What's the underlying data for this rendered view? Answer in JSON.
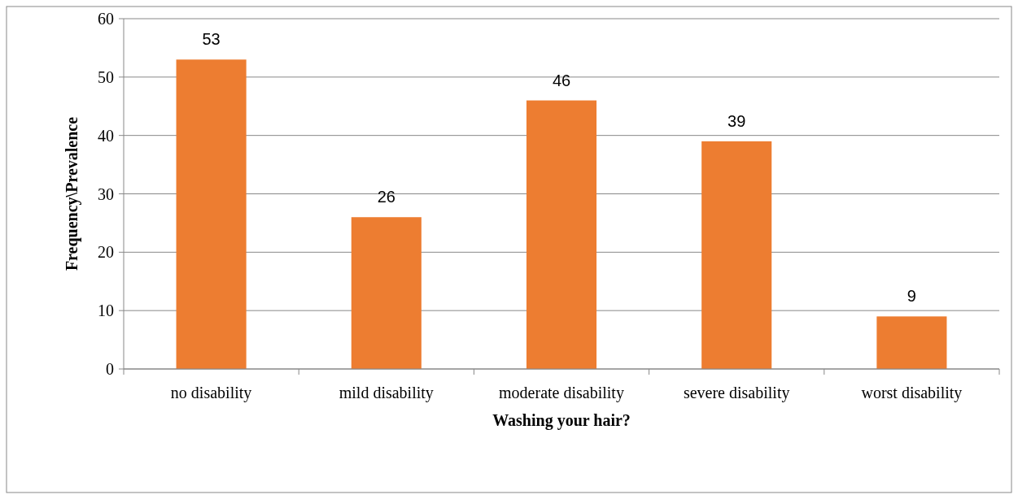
{
  "chart_data": {
    "type": "bar",
    "xlabel": "Washing your hair?",
    "ylabel": "Frequency\\Prevalence",
    "categories": [
      "no disability",
      "mild disability",
      "moderate disability",
      "severe disability",
      "worst disability"
    ],
    "values": [
      53,
      26,
      46,
      39,
      9
    ],
    "color": "#ed7d31",
    "data_labels": true,
    "grid": "y",
    "ylim": [
      0,
      60
    ],
    "yticks": [
      0,
      10,
      20,
      30,
      40,
      50,
      60
    ]
  }
}
